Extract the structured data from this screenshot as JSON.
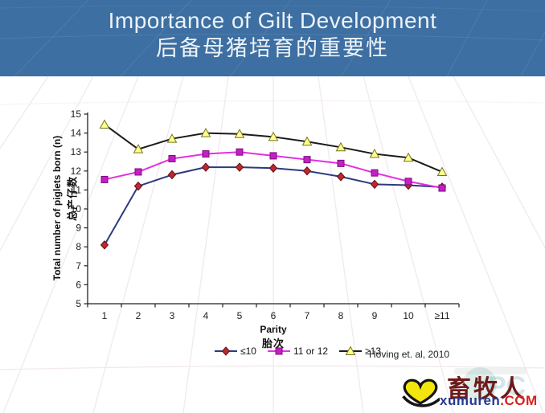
{
  "slide": {
    "title": "Importance of Gilt Development",
    "subtitle_zh": "后备母猪培育的重要性"
  },
  "chart_data": {
    "type": "line",
    "categories": [
      "1",
      "2",
      "3",
      "4",
      "5",
      "6",
      "7",
      "8",
      "9",
      "10",
      "≥11"
    ],
    "series": [
      {
        "name": "≤10",
        "marker": "diamond",
        "line_color": "#2c3a7e",
        "marker_fill": "#c1272d",
        "marker_stroke": "#5c1016",
        "values": [
          8.1,
          11.2,
          11.8,
          12.2,
          12.2,
          12.15,
          12.0,
          11.7,
          11.3,
          11.25,
          11.15
        ]
      },
      {
        "name": "11 or 12",
        "marker": "square",
        "line_color": "#e231e2",
        "marker_fill": "#c31fc3",
        "marker_stroke": "#7c0c7c",
        "values": [
          11.55,
          11.95,
          12.65,
          12.9,
          13.0,
          12.8,
          12.6,
          12.4,
          11.9,
          11.45,
          11.1
        ]
      },
      {
        "name": "≥13",
        "marker": "triangle",
        "line_color": "#1a1a1a",
        "marker_fill": "#ffff8c",
        "marker_stroke": "#74741f",
        "values": [
          14.45,
          13.15,
          13.7,
          14.0,
          13.95,
          13.8,
          13.55,
          13.25,
          12.9,
          12.7,
          11.95
        ]
      }
    ],
    "xlabel": "Parity",
    "xlabel_zh": "胎次",
    "ylabel": "Total number of piglets born (n)",
    "ylabel_zh": "总产仔数",
    "ylim": [
      5,
      15
    ],
    "ytick_step": 1,
    "yticks": [
      5,
      6,
      7,
      8,
      9,
      10,
      11,
      12,
      13,
      14,
      15
    ],
    "grid": false,
    "legend_position": "bottom",
    "annotation": "Hoving  et. al, 2010"
  },
  "logo": {
    "brand_zh": "畜牧人",
    "domain": "xumuren",
    "tld": ".COM"
  },
  "colors": {
    "header_bg": "#3d6fa2",
    "title_text": "#edf2f7",
    "brand_yellow": "#f2e60e",
    "brand_red": "#d42222",
    "brand_navy": "#233a8f",
    "brand_maroon": "#6e1a1a"
  }
}
